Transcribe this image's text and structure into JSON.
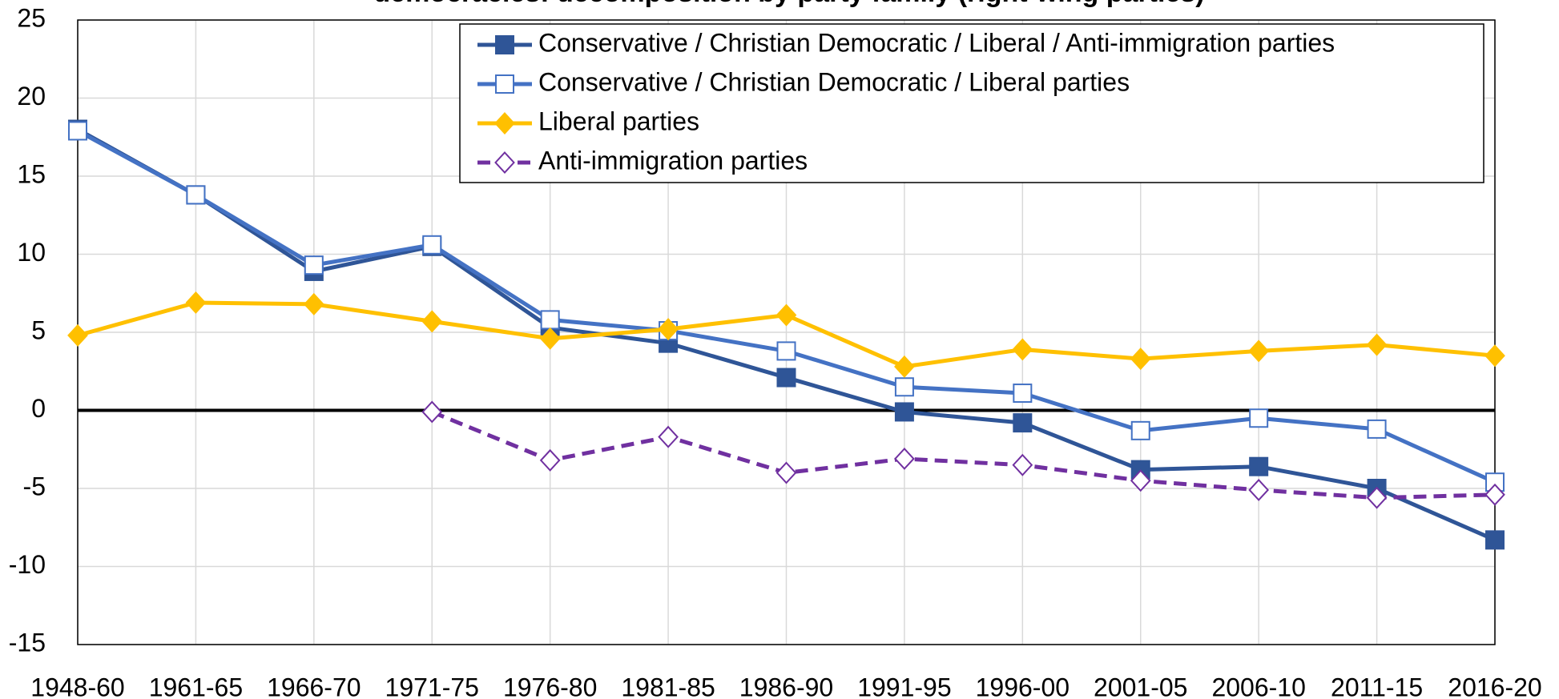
{
  "chart_data": {
    "type": "line",
    "title": "democracies: decomposition by party family (right-wing parties)",
    "categories": [
      "1948-60",
      "1961-65",
      "1966-70",
      "1971-75",
      "1976-80",
      "1981-85",
      "1986-90",
      "1991-95",
      "1996-00",
      "2001-05",
      "2006-10",
      "2011-15",
      "2016-20"
    ],
    "series": [
      {
        "name": "Conservative / Christian Democratic / Liberal / Anti-immigration parties",
        "color": "#2f5597",
        "marker": "square",
        "filled": true,
        "dashed": false,
        "values": [
          18.0,
          13.8,
          8.9,
          10.5,
          5.3,
          4.3,
          2.1,
          -0.1,
          -0.8,
          -3.8,
          -3.6,
          -5.0,
          -8.3
        ]
      },
      {
        "name": "Conservative / Christian Democratic / Liberal parties",
        "color": "#4472c4",
        "marker": "square",
        "filled": false,
        "dashed": false,
        "values": [
          17.9,
          13.8,
          9.3,
          10.6,
          5.8,
          5.1,
          3.8,
          1.5,
          1.1,
          -1.3,
          -0.5,
          -1.2,
          -4.6
        ]
      },
      {
        "name": "Liberal parties",
        "color": "#ffc000",
        "marker": "diamond",
        "filled": true,
        "dashed": false,
        "values": [
          4.8,
          6.9,
          6.8,
          5.7,
          4.6,
          5.2,
          6.1,
          2.8,
          3.9,
          3.3,
          3.8,
          4.2,
          3.5
        ]
      },
      {
        "name": "Anti-immigration parties",
        "color": "#7030a0",
        "marker": "diamond",
        "filled": false,
        "dashed": true,
        "values": [
          null,
          null,
          null,
          -0.1,
          -3.2,
          -1.7,
          -4.0,
          -3.1,
          -3.5,
          -4.5,
          -5.1,
          -5.6,
          -5.4
        ]
      }
    ],
    "ylim": [
      -15,
      25
    ],
    "yticks": [
      -15,
      -10,
      -5,
      0,
      5,
      10,
      15,
      20,
      25
    ],
    "grid": true,
    "legend": "top-right"
  }
}
